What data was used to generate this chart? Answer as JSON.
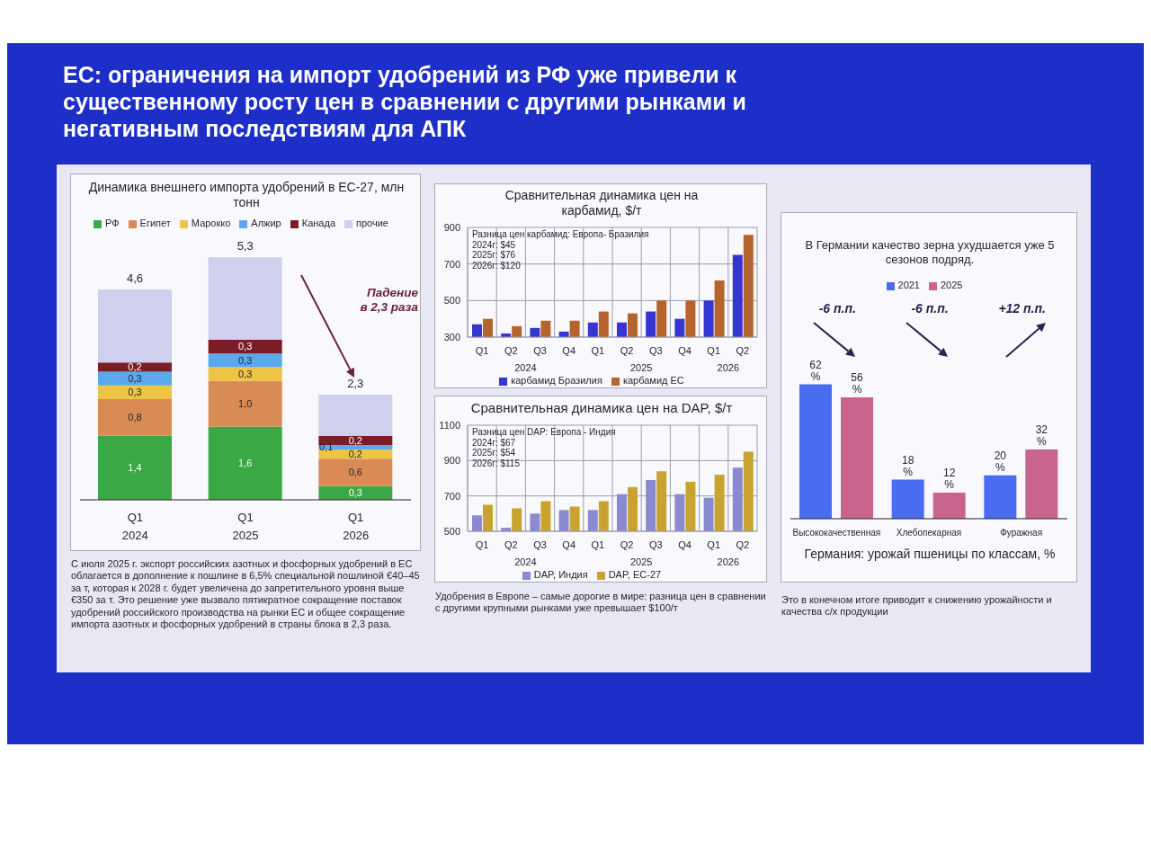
{
  "chart_data": [
    {
      "type": "other",
      "title": "ЕС: ограничения на импорт удобрений из РФ уже привели к существенному росту цен в сравнении с другими рынками и негативным последствиям для АПК"
    },
    {
      "type": "bar",
      "title": "Динамика внешнего импорта удобрений в ЕС-27, млн тонн",
      "categories": [
        "Q1\n2024",
        "Q1\n2025",
        "Q1\n2026"
      ],
      "stacked": true,
      "legend": "top",
      "tick_labels": "x",
      "series": [
        {
          "name": "РФ",
          "color": "#3aa845",
          "values": [
            1.4,
            1.6,
            0.3
          ],
          "value_labels": [
            "1,4",
            "1,6",
            "0,3"
          ]
        },
        {
          "name": "Египет",
          "color": "#d98b55",
          "values": [
            0.8,
            1.0,
            0.6
          ],
          "value_labels": [
            "0,8",
            "1,0",
            "0,6"
          ]
        },
        {
          "name": "Марокко",
          "color": "#edc444",
          "values": [
            0.3,
            0.3,
            0.2
          ],
          "value_labels": [
            "0,3",
            "0,3",
            "0,2"
          ]
        },
        {
          "name": "Алжир",
          "color": "#5ba8ee",
          "values": [
            0.3,
            0.3,
            0.1
          ],
          "value_labels": [
            "0,3",
            "0,3",
            "0,1"
          ]
        },
        {
          "name": "Канада",
          "color": "#7a1d28",
          "values": [
            0.2,
            0.3,
            0.2
          ],
          "value_labels": [
            "0,2",
            "0,3",
            "0,2"
          ]
        },
        {
          "name": "прочие",
          "color": "#cfd0ee",
          "values": [
            1.6,
            1.8,
            0.9
          ]
        }
      ],
      "totals": [
        "4,6",
        "5,3",
        "2,3"
      ],
      "annotations": [
        "Падение в 2,3 раза",
        "С июля 2025 г. экспорт российских азотных и фосфорных удобрений в ЕС облагается в дополнение к пошлине в 6,5% специальной пошлиной €40–45 за т, которая к 2028 г. будет увеличена до запретительного уровня выше €350 за т. Это решение уже вызвало пятикратное сокращение поставок удобрений российского производства на рынки ЕС и общее сокращение импорта азотных и фосфорных удобрений в страны блока в 2,3 раза."
      ]
    },
    {
      "type": "bar",
      "title": "Сравнительная динамика цен на карбамид, $/т",
      "categories": [
        "Q1",
        "Q2",
        "Q3",
        "Q4",
        "Q1",
        "Q2",
        "Q3",
        "Q4",
        "Q1",
        "Q2"
      ],
      "ylim": [
        300,
        900
      ],
      "yticks": [
        300,
        500,
        700,
        900
      ],
      "grid": true,
      "legend": "bottom",
      "series": [
        {
          "name": "карбамид Бразилия",
          "color": "#3535d0",
          "values": [
            370,
            320,
            350,
            330,
            380,
            380,
            440,
            400,
            500,
            750
          ]
        },
        {
          "name": "карбамид ЕС",
          "color": "#b5642d",
          "values": [
            400,
            360,
            390,
            390,
            440,
            430,
            500,
            500,
            610,
            860
          ]
        }
      ],
      "annotations": [
        "2024",
        "2025",
        "2026",
        "Разница цен карбамид: Европа- Бразилия\n2024г: $45\n2025г: $76\n2026г: $120"
      ]
    },
    {
      "type": "bar",
      "title": "Сравнительная динамика цен на DAP, $/т",
      "categories": [
        "Q1",
        "Q2",
        "Q3",
        "Q4",
        "Q1",
        "Q2",
        "Q3",
        "Q4",
        "Q1",
        "Q2"
      ],
      "ylim": [
        500,
        1100
      ],
      "yticks": [
        500,
        700,
        900,
        1100
      ],
      "grid": true,
      "legend": "bottom",
      "series": [
        {
          "name": "DAP, Индия",
          "color": "#8a8ad0",
          "values": [
            590,
            520,
            600,
            620,
            620,
            710,
            790,
            710,
            690,
            860
          ]
        },
        {
          "name": "DAP, ЕС-27",
          "color": "#c9a330",
          "values": [
            650,
            630,
            670,
            640,
            670,
            750,
            840,
            780,
            820,
            950
          ]
        }
      ],
      "annotations": [
        "2024",
        "2025",
        "2026",
        "Разница цен DAP: Европа - Индия\n2024г: $67\n2025г: $54\n2026г: $115",
        "Удобрения в Европе – самые дорогие в мире: разница цен в сравнении с другими крупными рынками уже превышает $100/т"
      ]
    },
    {
      "type": "bar",
      "title": "В Германии качество зерна ухудшается уже 5 сезонов подряд.",
      "categories": [
        "Высококачественная",
        "Хлебопекарная",
        "Фуражная"
      ],
      "xlabel": "Германия: урожай пшеницы по классам, %",
      "legend": "top",
      "tick_labels": "x",
      "series": [
        {
          "name": "2021",
          "color": "#4a6cf0",
          "values": [
            62,
            18,
            20
          ],
          "value_labels": [
            "62 %",
            "18 %",
            "20 %"
          ]
        },
        {
          "name": "2025",
          "color": "#c9648f",
          "values": [
            56,
            12,
            32
          ],
          "value_labels": [
            "56 %",
            "12 %",
            "32 %"
          ]
        }
      ],
      "annotations": [
        "-6 п.п.",
        "-6 п.п.",
        "+12 п.п.",
        "Это в конечном итоге приводит к снижению урожайности и качества с/х продукции"
      ]
    }
  ]
}
